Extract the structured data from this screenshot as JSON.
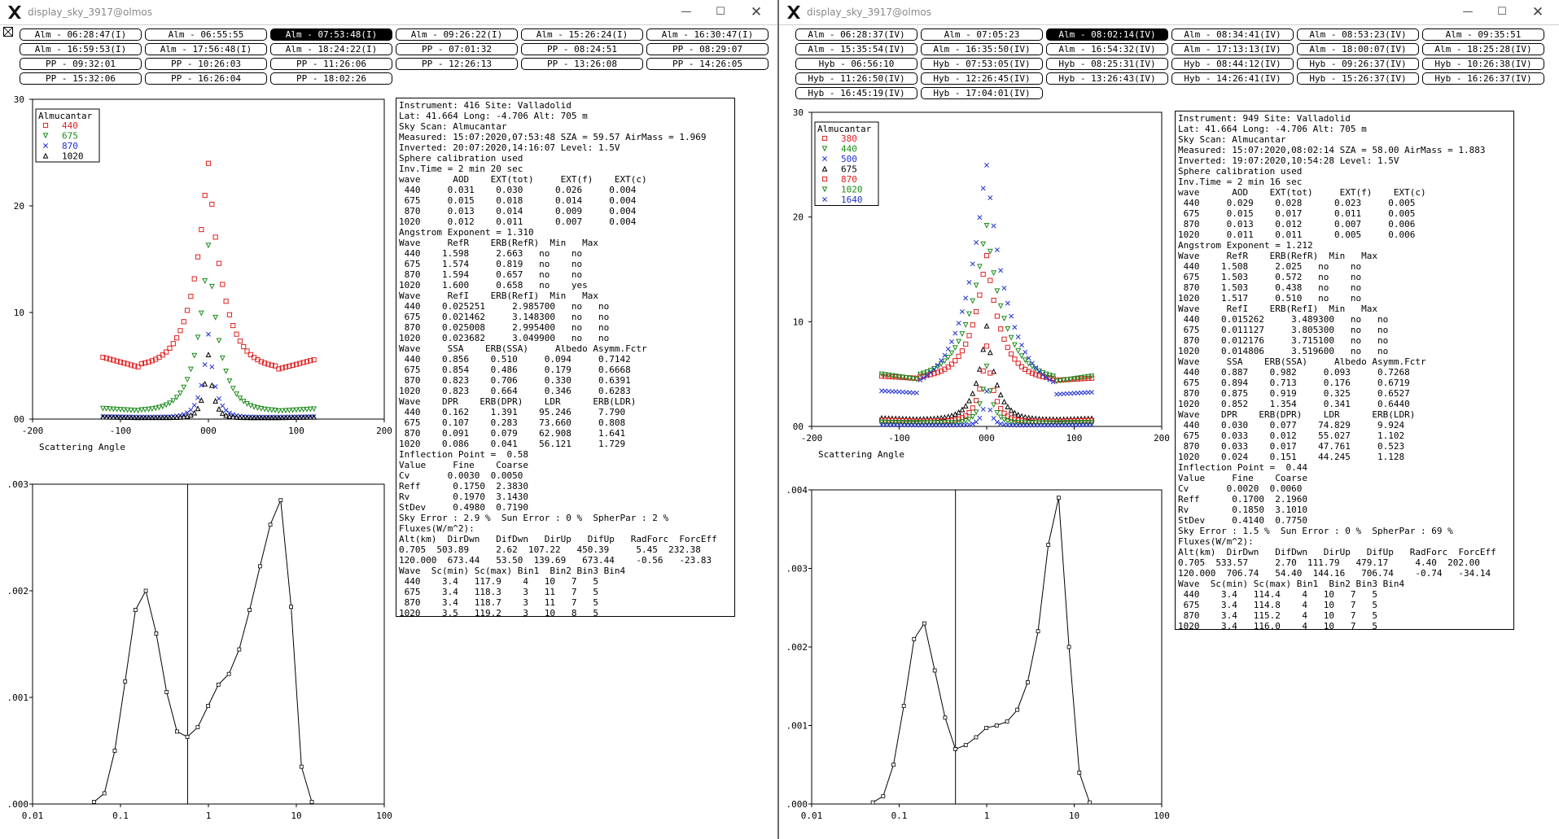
{
  "left": {
    "title": "display_sky_3917@olmos",
    "controls": {
      "minimize": "—",
      "maximize": "☐",
      "close": "✕"
    },
    "buttons": [
      "Alm - 06:28:47(I)",
      "Alm - 06:55:55",
      "Alm - 07:53:48(I)",
      "Alm - 09:26:22(I)",
      "Alm - 15:26:24(I)",
      "Alm - 16:30:47(I)",
      "Alm - 16:59:53(I)",
      "Alm - 17:56:48(I)",
      "Alm - 18:24:22(I)",
      "PP - 07:01:32",
      "PP - 08:24:51",
      "PP - 08:29:07",
      "PP - 09:32:01",
      "PP - 10:26:03",
      "PP - 11:26:06",
      "PP - 12:26:13",
      "PP - 13:26:08",
      "PP - 14:26:05",
      "PP - 15:32:06",
      "PP - 16:26:04",
      "PP - 18:02:26"
    ],
    "selected_index": 2,
    "legend": {
      "title": "Almucantar",
      "items": [
        {
          "label": "440",
          "marker": "square",
          "color": "#e02020"
        },
        {
          "label": "675",
          "marker": "triangle-down",
          "color": "#1a8a1a"
        },
        {
          "label": "870",
          "marker": "x",
          "color": "#2030d0"
        },
        {
          "label": "1020",
          "marker": "triangle-up",
          "color": "#000000"
        }
      ]
    },
    "sky_plot": {
      "xlabel": "Scattering Angle",
      "x_ticks": [
        "-200",
        "-100",
        "000",
        "100",
        "200"
      ],
      "y_ticks": [
        "00",
        "10",
        "20",
        "30"
      ],
      "xlim": [
        -200,
        200
      ],
      "ylim": [
        0,
        30
      ],
      "curves": [
        {
          "color": "#e02020",
          "marker": "square",
          "peak": 25,
          "base": 5.8,
          "lim": 120,
          "halfwidth": 18,
          "valley": 4.9
        },
        {
          "color": "#1a8a1a",
          "marker": "triangle-down",
          "peak": 17,
          "base": 1.0,
          "lim": 120,
          "halfwidth": 14,
          "valley": 0.8
        },
        {
          "color": "#2030d0",
          "marker": "x",
          "peak": 8.3,
          "base": 0.25,
          "lim": 120,
          "halfwidth": 8,
          "valley": 0.2
        },
        {
          "color": "#000000",
          "marker": "triangle-up",
          "peak": 6.3,
          "base": 0.2,
          "lim": 120,
          "halfwidth": 6,
          "valley": 0.15
        }
      ]
    },
    "size_plot": {
      "x_ticks": [
        "0.01",
        "0.1",
        "1",
        "10",
        "100"
      ],
      "y_ticks": [
        ".000",
        ".001",
        ".002",
        ".003"
      ],
      "ylim": [
        0,
        0.003
      ],
      "inflection": 0.58,
      "r": [
        0.05,
        0.0656,
        0.0861,
        0.113,
        0.148,
        0.194,
        0.255,
        0.335,
        0.439,
        0.576,
        0.756,
        0.992,
        1.3,
        1.71,
        2.24,
        2.94,
        3.86,
        5.06,
        6.64,
        8.72,
        11.44,
        15.0
      ],
      "v": [
        2e-05,
        0.0001,
        0.0005,
        0.00115,
        0.00182,
        0.002,
        0.0016,
        0.00105,
        0.00068,
        0.00063,
        0.00072,
        0.00092,
        0.00112,
        0.00122,
        0.00145,
        0.00182,
        0.00223,
        0.00262,
        0.00285,
        0.00185,
        0.00035,
        2e-05
      ]
    },
    "info_lines": [
      "Instrument: 416 Site: Valladolid",
      "Lat: 41.664 Long: -4.706 Alt: 705 m",
      "Sky Scan: Almucantar",
      "Measured: 15:07:2020,07:53:48 SZA = 59.57 AirMass = 1.969",
      "Inverted: 20:07:2020,14:16:07 Level: 1.5V",
      "Sphere calibration used",
      "Inv.Time = 2 min 20 sec",
      "wave      AOD    EXT(tot)     EXT(f)    EXT(c)",
      " 440     0.031    0.030      0.026     0.004",
      " 675     0.015    0.018      0.014     0.004",
      " 870     0.013    0.014      0.009     0.004",
      "1020     0.012    0.011      0.007     0.004",
      "Angstrom Exponent = 1.310",
      "Wave     RefR    ERB(RefR)  Min   Max",
      " 440    1.598     2.663   no    no",
      " 675    1.574     0.819   no    no",
      " 870    1.594     0.657   no    no",
      "1020    1.600     0.658   no    yes",
      "Wave     RefI    ERB(RefI)  Min   Max",
      " 440    0.025251     2.985700   no   no",
      " 675    0.021462     3.148300   no   no",
      " 870    0.025008     2.995400   no   no",
      "1020    0.023682     3.049900   no   no",
      "Wave     SSA    ERB(SSA)     Albedo Asymm.Fctr",
      " 440    0.856    0.510     0.094     0.7142",
      " 675    0.854    0.486     0.179     0.6668",
      " 870    0.823    0.706     0.330     0.6391",
      "1020    0.823    0.664     0.346     0.6283",
      "Wave    DPR    ERB(DPR)    LDR      ERB(LDR)",
      " 440    0.162    1.391    95.246     7.790",
      " 675    0.107    0.283    73.660     0.808",
      " 870    0.091    0.079    62.908     1.641",
      "1020    0.086    0.041    56.121     1.729",
      "Inflection Point =  0.58",
      "Value     Fine    Coarse",
      "Cv       0.0030  0.0050",
      "Reff      0.1750  2.3830",
      "Rv        0.1970  3.1430",
      "StDev     0.4980  0.7190",
      "Sky Error : 2.9 %  Sun Error : 0 %  SpherPar : 2 %",
      "Fluxes(W/m^2):",
      "Alt(km)  DirDwn   DifDwn   DirUp   DifUp   RadForc  ForcEff",
      "0.705  503.89     2.62  107.22   450.39     5.45  232.38",
      "120.000  673.44   53.50  139.69   673.44    -0.56   -23.83",
      "Wave  Sc(min) Sc(max) Bin1  Bin2 Bin3 Bin4",
      " 440    3.4   117.9    4   10   7   5",
      " 675    3.4   118.3    3   11   7   5",
      " 870    3.4   118.7    3   11   7   5",
      "1020    3.5   119.2    3   10   8   5"
    ]
  },
  "right": {
    "title": "display_sky_3917@olmos",
    "controls": {
      "minimize": "—",
      "maximize": "☐",
      "close": "✕"
    },
    "buttons": [
      "Alm - 06:28:37(IV)",
      "Alm - 07:05:23",
      "Alm - 08:02:14(IV)",
      "Alm - 08:34:41(IV)",
      "Alm - 08:53:23(IV)",
      "Alm - 09:35:51",
      "Alm - 15:35:54(IV)",
      "Alm - 16:35:50(IV)",
      "Alm - 16:54:32(IV)",
      "Alm - 17:13:13(IV)",
      "Alm - 18:00:07(IV)",
      "Alm - 18:25:28(IV)",
      "Hyb - 06:56:10",
      "Hyb - 07:53:05(IV)",
      "Hyb - 08:25:31(IV)",
      "Hyb - 08:44:12(IV)",
      "Hyb - 09:26:37(IV)",
      "Hyb - 10:26:38(IV)",
      "Hyb - 11:26:50(IV)",
      "Hyb - 12:26:45(IV)",
      "Hyb - 13:26:43(IV)",
      "Hyb - 14:26:41(IV)",
      "Hyb - 15:26:37(IV)",
      "Hyb - 16:26:37(IV)",
      "Hyb - 16:45:19(IV)",
      "Hyb - 17:04:01(IV)"
    ],
    "selected_index": 2,
    "legend": {
      "title": "Almucantar",
      "items": [
        {
          "label": "380",
          "marker": "square",
          "color": "#e02020"
        },
        {
          "label": "440",
          "marker": "triangle-down",
          "color": "#1a8a1a"
        },
        {
          "label": "500",
          "marker": "x",
          "color": "#2030d0"
        },
        {
          "label": "675",
          "marker": "triangle-up",
          "color": "#000000"
        },
        {
          "label": "870",
          "marker": "square",
          "color": "#e02020"
        },
        {
          "label": "1020",
          "marker": "triangle-down",
          "color": "#1a8a1a"
        },
        {
          "label": "1640",
          "marker": "x",
          "color": "#2030d0"
        }
      ]
    },
    "sky_plot": {
      "xlabel": "Scattering Angle",
      "x_ticks": [
        "-200",
        "-100",
        "000",
        "100",
        "200"
      ],
      "y_ticks": [
        "00",
        "10",
        "20",
        "30"
      ],
      "xlim": [
        -200,
        200
      ],
      "ylim": [
        0,
        30
      ],
      "curves": [
        {
          "color": "#e02020",
          "marker": "square",
          "peak": 17,
          "base": 4.8,
          "lim": 120,
          "halfwidth": 18,
          "valley": 4.6
        },
        {
          "color": "#1a8a1a",
          "marker": "triangle-down",
          "peak": 20,
          "base": 5.0,
          "lim": 120,
          "halfwidth": 22,
          "valley": 4.5
        },
        {
          "color": "#2030d0",
          "marker": "x",
          "peak": 26,
          "base": 3.4,
          "lim": 120,
          "halfwidth": 26,
          "valley": 3.2
        },
        {
          "color": "#000000",
          "marker": "triangle-up",
          "peak": 10,
          "base": 0.8,
          "lim": 120,
          "halfwidth": 12,
          "valley": 0.7
        },
        {
          "color": "#e02020",
          "marker": "square",
          "peak": 8,
          "base": 0.6,
          "lim": 120,
          "halfwidth": 9,
          "valley": 0.5
        },
        {
          "color": "#1a8a1a",
          "marker": "triangle-down",
          "peak": 6,
          "base": 0.4,
          "lim": 120,
          "halfwidth": 7,
          "valley": 0.35
        },
        {
          "color": "#2030d0",
          "marker": "x",
          "peak": 3.5,
          "base": 0.15,
          "lim": 120,
          "halfwidth": 5,
          "valley": 0.12
        }
      ]
    },
    "size_plot": {
      "x_ticks": [
        "0.01",
        "0.1",
        "1",
        "10",
        "100"
      ],
      "y_ticks": [
        ".000",
        ".001",
        ".002",
        ".003",
        ".004"
      ],
      "ylim": [
        0,
        0.004
      ],
      "inflection": 0.44,
      "r": [
        0.05,
        0.0656,
        0.0861,
        0.113,
        0.148,
        0.194,
        0.255,
        0.335,
        0.439,
        0.576,
        0.756,
        0.992,
        1.3,
        1.71,
        2.24,
        2.94,
        3.86,
        5.06,
        6.64,
        8.72,
        11.44,
        15.0
      ],
      "v": [
        2e-05,
        0.0001,
        0.0005,
        0.00125,
        0.0021,
        0.0023,
        0.0017,
        0.0011,
        0.0007,
        0.00075,
        0.00085,
        0.00097,
        0.001,
        0.00105,
        0.0012,
        0.00155,
        0.0022,
        0.0033,
        0.0039,
        0.002,
        0.0004,
        2e-05
      ]
    },
    "info_lines": [
      "Instrument: 949 Site: Valladolid",
      "Lat: 41.664 Long: -4.706 Alt: 705 m",
      "Sky Scan: Almucantar",
      "Measured: 15:07:2020,08:02:14 SZA = 58.00 AirMass = 1.883",
      "Inverted: 19:07:2020,10:54:28 Level: 1.5V",
      "Sphere calibration used",
      "Inv.Time = 2 min 16 sec",
      "wave      AOD    EXT(tot)     EXT(f)    EXT(c)",
      " 440     0.029    0.028      0.023     0.005",
      " 675     0.015    0.017      0.011     0.005",
      " 870     0.013    0.012      0.007     0.006",
      "1020     0.011    0.011      0.005     0.006",
      "Angstrom Exponent = 1.212",
      "Wave     RefR    ERB(RefR)  Min   Max",
      " 440    1.508     2.025   no    no",
      " 675    1.503     0.572   no    no",
      " 870    1.503     0.438   no    no",
      "1020    1.517     0.510   no    no",
      "Wave     RefI    ERB(RefI)  Min   Max",
      " 440    0.015262     3.489300   no   no",
      " 675    0.011127     3.805300   no   no",
      " 870    0.012176     3.715100   no   no",
      "1020    0.014806     3.519600   no   no",
      "Wave     SSA    ERB(SSA)     Albedo Asymm.Fctr",
      " 440    0.887    0.982     0.093     0.7268",
      " 675    0.894    0.713     0.176     0.6719",
      " 870    0.875    0.919     0.325     0.6527",
      "1020    0.852    1.354     0.341     0.6440",
      "Wave    DPR    ERB(DPR)    LDR      ERB(LDR)",
      " 440    0.030    0.077    74.829     9.924",
      " 675    0.033    0.012    55.027     1.102",
      " 870    0.033    0.017    47.761     0.523",
      "1020    0.024    0.151    44.245     1.128",
      "Inflection Point =  0.44",
      "Value     Fine    Coarse",
      "Cv       0.0020  0.0060",
      "Reff      0.1700  2.1960",
      "Rv        0.1850  3.1010",
      "StDev     0.4140  0.7750",
      "Sky Error : 1.5 %  Sun Error : 0 %  SpherPar : 69 %",
      "Fluxes(W/m^2):",
      "Alt(km)  DirDwn   DifDwn   DirUp   DifUp   RadForc  ForcEff",
      "0.705  533.57     2.70  111.79   479.17     4.40  202.00",
      "120.000  706.74   54.40  144.16   706.74    -0.74   -34.14",
      "Wave  Sc(min) Sc(max) Bin1  Bin2 Bin3 Bin4",
      " 440    3.4   114.4    4   10   7   5",
      " 675    3.4   114.8    4   10   7   5",
      " 870    3.4   115.2    4   10   7   5",
      "1020    3.4   116.0    4   10   7   5"
    ]
  }
}
